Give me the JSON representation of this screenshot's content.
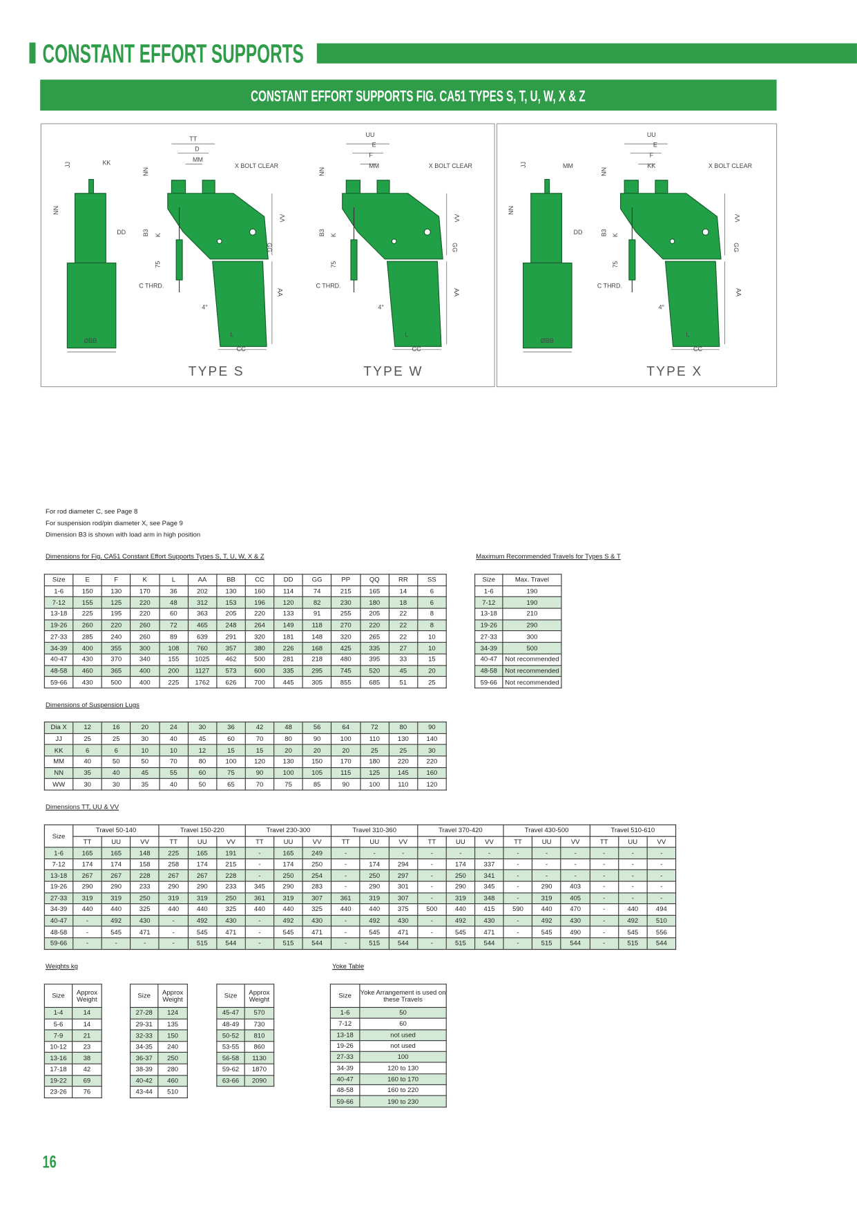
{
  "header": {
    "title": "CONSTANT EFFORT SUPPORTS",
    "subtitle": "CONSTANT EFFORT SUPPORTS FIG. CA51 TYPES S, T, U, W, X & Z"
  },
  "diagrams": [
    {
      "caption": "TYPE S",
      "labels": [
        "TT",
        "D",
        "MM",
        "X BOLT CLEAR",
        "JJ",
        "KK",
        "NN",
        "NN",
        "DD",
        "B3",
        "K",
        "75",
        "VV",
        "GG",
        "C THRD.",
        "AA",
        "4°",
        "L",
        "CC",
        "ØBB"
      ]
    },
    {
      "caption": "TYPE W",
      "labels": [
        "UU",
        "E",
        "F",
        "MM",
        "X BOLT CLEAR",
        "NN",
        "B3",
        "K",
        "75",
        "VV",
        "GG",
        "C THRD.",
        "AA",
        "4°",
        "L",
        "CC"
      ]
    },
    {
      "caption": "TYPE X",
      "labels": [
        "UU",
        "E",
        "F",
        "JJ",
        "MM",
        "KK",
        "NN",
        "X BOLT CLEAR",
        "NN",
        "DD",
        "B3",
        "K",
        "75",
        "VV",
        "GG",
        "C THRD.",
        "AA",
        "4°",
        "L",
        "CC",
        "ØBB"
      ]
    }
  ],
  "notes": [
    "For rod diameter C, see Page 8",
    "For suspension rod/pin diameter X, see Page 9",
    "Dimension B3 is shown with load arm in high position"
  ],
  "tables": {
    "dimensions": {
      "caption": "Dimensions for Fig. CA51 Constant Effort Supports Types S, T, U, W, X & Z",
      "header": [
        "Size",
        "E",
        "F",
        "K",
        "L",
        "AA",
        "BB",
        "CC",
        "DD",
        "GG",
        "PP",
        "QQ",
        "RR",
        "SS"
      ],
      "rows": [
        [
          "1-6",
          150,
          130,
          170,
          36,
          202,
          130,
          160,
          114,
          74,
          215,
          165,
          14,
          6
        ],
        [
          "7-12",
          155,
          125,
          220,
          48,
          312,
          153,
          196,
          120,
          82,
          230,
          180,
          18,
          6
        ],
        [
          "13-18",
          225,
          195,
          220,
          60,
          363,
          205,
          220,
          133,
          91,
          255,
          205,
          22,
          8
        ],
        [
          "19-26",
          260,
          220,
          260,
          72,
          465,
          248,
          264,
          149,
          118,
          270,
          220,
          22,
          8
        ],
        [
          "27-33",
          285,
          240,
          260,
          89,
          639,
          291,
          320,
          181,
          148,
          320,
          265,
          22,
          10
        ],
        [
          "34-39",
          400,
          355,
          300,
          108,
          760,
          357,
          380,
          226,
          168,
          425,
          335,
          27,
          10
        ],
        [
          "40-47",
          430,
          370,
          340,
          155,
          1025,
          462,
          500,
          281,
          218,
          480,
          395,
          33,
          15
        ],
        [
          "48-58",
          460,
          365,
          400,
          200,
          1127,
          573,
          600,
          335,
          295,
          745,
          520,
          45,
          20
        ],
        [
          "59-66",
          430,
          500,
          400,
          225,
          1762,
          626,
          700,
          445,
          305,
          855,
          685,
          51,
          25
        ]
      ]
    },
    "max_travel": {
      "caption": "Maximum Recommended Travels for Types S & T",
      "header": [
        "Size",
        "Max. Travel"
      ],
      "rows": [
        [
          "1-6",
          190
        ],
        [
          "7-12",
          190
        ],
        [
          "13-18",
          210
        ],
        [
          "19-26",
          290
        ],
        [
          "27-33",
          300
        ],
        [
          "34-39",
          500
        ],
        [
          "40-47",
          "Not recommended"
        ],
        [
          "48-58",
          "Not recommended"
        ],
        [
          "59-66",
          "Not recommended"
        ]
      ]
    },
    "lugs": {
      "caption": "Dimensions of Suspension Lugs",
      "rows": [
        [
          "Dia X",
          12,
          16,
          20,
          24,
          30,
          36,
          42,
          48,
          56,
          64,
          72,
          80,
          90
        ],
        [
          "JJ",
          25,
          25,
          30,
          40,
          45,
          60,
          70,
          80,
          90,
          100,
          110,
          130,
          140
        ],
        [
          "KK",
          6,
          6,
          10,
          10,
          12,
          15,
          15,
          20,
          20,
          20,
          25,
          25,
          30
        ],
        [
          "MM",
          40,
          50,
          50,
          70,
          80,
          100,
          120,
          130,
          150,
          170,
          180,
          220,
          220
        ],
        [
          "NN",
          35,
          40,
          45,
          55,
          60,
          75,
          90,
          100,
          105,
          115,
          125,
          145,
          160
        ],
        [
          "WW",
          30,
          30,
          35,
          40,
          50,
          65,
          70,
          75,
          85,
          90,
          100,
          110,
          120
        ]
      ]
    },
    "travels": {
      "caption": "Dimensions TT, UU & VV",
      "size_label": "Size",
      "groups": [
        {
          "label": "Travel 50-140",
          "columns": [
            "TT",
            "UU",
            "VV"
          ]
        },
        {
          "label": "Travel 150-220",
          "columns": [
            "TT",
            "UU",
            "VV"
          ]
        },
        {
          "label": "Travel 230-300",
          "columns": [
            "TT",
            "UU",
            "VV"
          ]
        },
        {
          "label": "Travel 310-360",
          "columns": [
            "TT",
            "UU",
            "VV"
          ]
        },
        {
          "label": "Travel 370-420",
          "columns": [
            "TT",
            "UU",
            "VV"
          ]
        },
        {
          "label": "Travel 430-500",
          "columns": [
            "TT",
            "UU",
            "VV"
          ]
        },
        {
          "label": "Travel 510-610",
          "columns": [
            "TT",
            "UU",
            "VV"
          ]
        }
      ],
      "rows": [
        [
          "1-6",
          165,
          165,
          148,
          225,
          165,
          191,
          "-",
          165,
          249,
          "-",
          "-",
          "-",
          "-",
          "-",
          "-",
          "-",
          "-",
          "-",
          "-",
          "-",
          "-"
        ],
        [
          "7-12",
          174,
          174,
          158,
          258,
          174,
          215,
          "-",
          174,
          250,
          "-",
          174,
          294,
          "-",
          174,
          337,
          "-",
          "-",
          "-",
          "-",
          "-",
          "-"
        ],
        [
          "13-18",
          267,
          267,
          228,
          267,
          267,
          228,
          "-",
          250,
          254,
          "-",
          250,
          297,
          "-",
          250,
          341,
          "-",
          "-",
          "-",
          "-",
          "-",
          "-"
        ],
        [
          "19-26",
          290,
          290,
          233,
          290,
          290,
          233,
          345,
          290,
          283,
          "-",
          290,
          301,
          "-",
          290,
          345,
          "-",
          290,
          403,
          "-",
          "-",
          "-"
        ],
        [
          "27-33",
          319,
          319,
          250,
          319,
          319,
          250,
          361,
          319,
          307,
          361,
          319,
          307,
          "-",
          319,
          348,
          "-",
          319,
          405,
          "-",
          "-",
          "-"
        ],
        [
          "34-39",
          440,
          440,
          325,
          440,
          440,
          325,
          440,
          440,
          325,
          440,
          440,
          375,
          500,
          440,
          415,
          590,
          440,
          470,
          "-",
          440,
          494
        ],
        [
          "40-47",
          "-",
          492,
          430,
          "-",
          492,
          430,
          "-",
          492,
          430,
          "-",
          492,
          430,
          "-",
          492,
          430,
          "-",
          492,
          430,
          "-",
          492,
          510
        ],
        [
          "48-58",
          "-",
          545,
          471,
          "-",
          545,
          471,
          "-",
          545,
          471,
          "-",
          545,
          471,
          "-",
          545,
          471,
          "-",
          545,
          490,
          "-",
          545,
          556
        ],
        [
          "59-66",
          "-",
          "-",
          "-",
          "-",
          515,
          544,
          "-",
          515,
          544,
          "-",
          515,
          544,
          "-",
          515,
          544,
          "-",
          515,
          544,
          "-",
          515,
          544
        ]
      ]
    },
    "weights": {
      "caption": "Weights kg",
      "header": [
        "Size",
        "Approx Weight"
      ],
      "tables": [
        [
          [
            "1-4",
            14
          ],
          [
            "5-6",
            14
          ],
          [
            "7-9",
            21
          ],
          [
            "10-12",
            23
          ],
          [
            "13-16",
            38
          ],
          [
            "17-18",
            42
          ],
          [
            "19-22",
            69
          ],
          [
            "23-26",
            76
          ]
        ],
        [
          [
            "27-28",
            124
          ],
          [
            "29-31",
            135
          ],
          [
            "32-33",
            150
          ],
          [
            "34-35",
            240
          ],
          [
            "36-37",
            250
          ],
          [
            "38-39",
            280
          ],
          [
            "40-42",
            460
          ],
          [
            "43-44",
            510
          ]
        ],
        [
          [
            "45-47",
            570
          ],
          [
            "48-49",
            730
          ],
          [
            "50-52",
            810
          ],
          [
            "53-55",
            860
          ],
          [
            "56-58",
            1130
          ],
          [
            "59-62",
            1870
          ],
          [
            "63-66",
            2090
          ]
        ]
      ]
    },
    "yoke": {
      "caption": "Yoke Table",
      "header": [
        "Size",
        "Yoke Arrangement is used on these Travels"
      ],
      "rows": [
        [
          "1-6",
          "50"
        ],
        [
          "7-12",
          "60"
        ],
        [
          "13-18",
          "not used"
        ],
        [
          "19-26",
          "not used"
        ],
        [
          "27-33",
          "100"
        ],
        [
          "34-39",
          "120 to 130"
        ],
        [
          "40-47",
          "160 to 170"
        ],
        [
          "48-58",
          "160 to 220"
        ],
        [
          "59-66",
          "190 to 230"
        ]
      ]
    }
  },
  "page_number": "16"
}
